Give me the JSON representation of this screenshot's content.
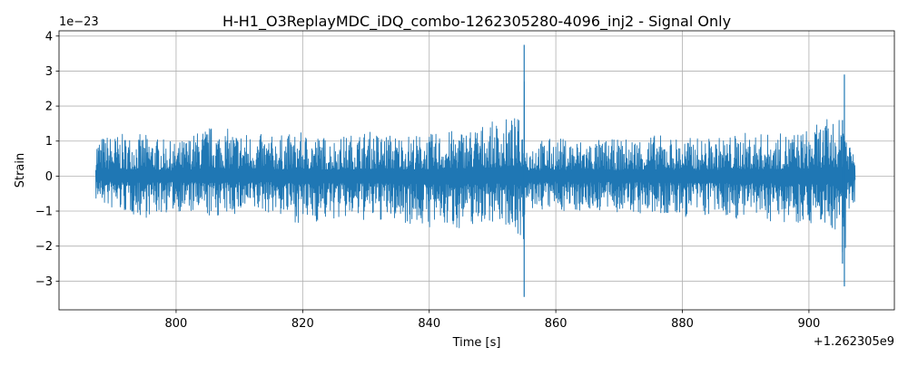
{
  "chart_data": {
    "type": "line",
    "title": "H-H1_O3ReplayMDC_iDQ_combo-1262305280-4096_inj2 - Signal Only",
    "xlabel": "Time [s]",
    "ylabel": "Strain",
    "x_offset_label": "+1.262305e9",
    "y_scale_label": "1e−23",
    "xlim": [
      781.5,
      913.5
    ],
    "ylim": [
      -3.82,
      4.15
    ],
    "x_ticks": [
      800,
      820,
      840,
      860,
      880,
      900
    ],
    "x_tick_labels": [
      "800",
      "820",
      "840",
      "860",
      "880",
      "900"
    ],
    "y_ticks": [
      -3,
      -2,
      -1,
      0,
      1,
      2,
      3,
      4
    ],
    "y_tick_labels": [
      "−3",
      "−2",
      "−1",
      "0",
      "1",
      "2",
      "3",
      "4"
    ],
    "grid": true,
    "series": [
      {
        "color": "#1f77b4",
        "x_range": [
          787.3,
          907.3
        ],
        "envelope": [
          {
            "x": 787.3,
            "min": -0.7,
            "max": 1.15
          },
          {
            "x": 790,
            "min": -1.0,
            "max": 1.2
          },
          {
            "x": 795,
            "min": -1.2,
            "max": 1.2
          },
          {
            "x": 800,
            "min": -1.0,
            "max": 0.95
          },
          {
            "x": 805,
            "min": -1.2,
            "max": 1.45
          },
          {
            "x": 810,
            "min": -1.1,
            "max": 1.3
          },
          {
            "x": 815,
            "min": -1.05,
            "max": 1.15
          },
          {
            "x": 820,
            "min": -1.4,
            "max": 1.25
          },
          {
            "x": 825,
            "min": -1.25,
            "max": 1.1
          },
          {
            "x": 830,
            "min": -1.3,
            "max": 1.3
          },
          {
            "x": 835,
            "min": -1.3,
            "max": 1.2
          },
          {
            "x": 840,
            "min": -1.5,
            "max": 1.2
          },
          {
            "x": 845,
            "min": -1.5,
            "max": 1.35
          },
          {
            "x": 850,
            "min": -1.3,
            "max": 1.55
          },
          {
            "x": 853,
            "min": -1.5,
            "max": 1.7
          },
          {
            "x": 854.8,
            "min": -1.8,
            "max": 1.65
          },
          {
            "x": 855,
            "min": -3.45,
            "max": 3.75
          },
          {
            "x": 855.3,
            "min": -1.0,
            "max": 1.0
          },
          {
            "x": 860,
            "min": -1.0,
            "max": 1.1
          },
          {
            "x": 865,
            "min": -1.0,
            "max": 1.05
          },
          {
            "x": 870,
            "min": -1.05,
            "max": 1.05
          },
          {
            "x": 875,
            "min": -1.15,
            "max": 1.2
          },
          {
            "x": 880,
            "min": -1.2,
            "max": 1.1
          },
          {
            "x": 885,
            "min": -1.15,
            "max": 1.1
          },
          {
            "x": 890,
            "min": -1.25,
            "max": 1.25
          },
          {
            "x": 895,
            "min": -1.3,
            "max": 1.2
          },
          {
            "x": 900,
            "min": -1.35,
            "max": 1.35
          },
          {
            "x": 903,
            "min": -1.4,
            "max": 1.65
          },
          {
            "x": 905.3,
            "min": -2.5,
            "max": 1.6
          },
          {
            "x": 905.6,
            "min": -3.15,
            "max": 2.9
          },
          {
            "x": 906,
            "min": -1.1,
            "max": 1.2
          },
          {
            "x": 907.3,
            "min": -0.7,
            "max": 1.05
          }
        ]
      }
    ]
  }
}
